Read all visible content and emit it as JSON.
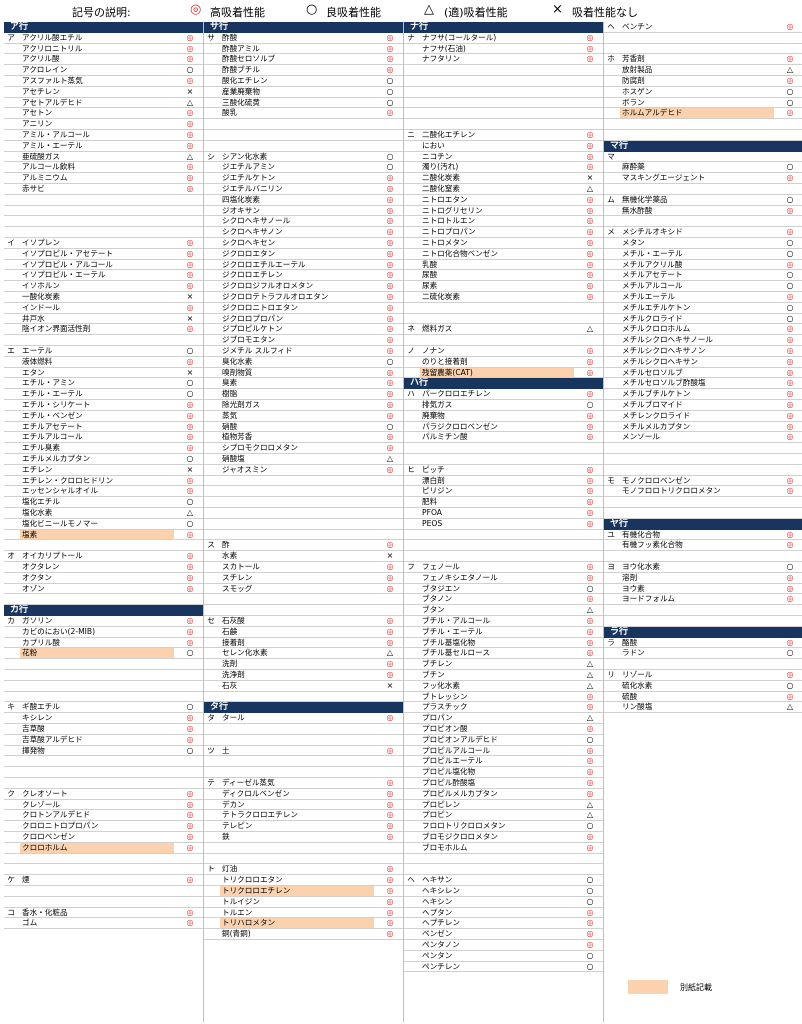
{
  "legend": {
    "title": "記号の説明:",
    "items": [
      {
        "sym": "◎",
        "label": "高吸着性能",
        "color": "#e03030"
      },
      {
        "sym": "○",
        "label": "良吸着性能",
        "color": "#000000"
      },
      {
        "sym": "△",
        "label": "(適)吸着性能",
        "color": "#000000"
      },
      {
        "sym": "×",
        "label": "吸着性能なし",
        "color": "#000000"
      }
    ]
  },
  "note": {
    "label": "別紙記載",
    "color": "#fbd2ad"
  },
  "colors": {
    "header": "#17355e",
    "highlight": "#fbd2ad",
    "double_circle": "#e03030"
  },
  "columns": [
    [
      [
        "H",
        "ア行"
      ],
      [
        "ア",
        "アクリル酸エチル",
        "◎"
      ],
      [
        "",
        "アクリロニトリル",
        "◎"
      ],
      [
        "",
        "アクリル酸",
        "◎"
      ],
      [
        "",
        "アクロレイン",
        "○"
      ],
      [
        "",
        "アスファルト蒸気",
        "◎"
      ],
      [
        "",
        "アセチレン",
        "×"
      ],
      [
        "",
        "アセトアルデヒド",
        "△"
      ],
      [
        "",
        "アセトン",
        "◎"
      ],
      [
        "",
        "アニリン",
        "◎"
      ],
      [
        "",
        "アミル・アルコール",
        "◎"
      ],
      [
        "",
        "アミル・エーテル",
        "◎"
      ],
      [
        "",
        "亜硫酸ガス",
        "△"
      ],
      [
        "",
        "アルコール飲料",
        "◎"
      ],
      [
        "",
        "アルミニウム",
        "◎"
      ],
      [
        "",
        "赤サビ",
        "◎"
      ],
      [
        "",
        "",
        ""
      ],
      [
        "",
        "",
        ""
      ],
      [
        "",
        "",
        ""
      ],
      [
        "",
        "",
        ""
      ],
      [
        "イ",
        "イソプレン",
        "◎"
      ],
      [
        "",
        "イソプロピル・アセテート",
        "◎"
      ],
      [
        "",
        "イソプロピル・アルコール",
        "◎"
      ],
      [
        "",
        "イソプロピル・エーテル",
        "◎"
      ],
      [
        "",
        "イソホルン",
        "◎"
      ],
      [
        "",
        "一酸化炭素",
        "×"
      ],
      [
        "",
        "インドール",
        "◎"
      ],
      [
        "",
        "井戸水",
        "×"
      ],
      [
        "",
        "陰イオン界面活性剤",
        "◎"
      ],
      [
        "",
        "",
        ""
      ],
      [
        "エ",
        "エーテル",
        "○"
      ],
      [
        "",
        "液体燃料",
        "◎"
      ],
      [
        "",
        "エタン",
        "×"
      ],
      [
        "",
        "エチル・アミン",
        "○"
      ],
      [
        "",
        "エチル・エーテル",
        "○"
      ],
      [
        "",
        "エチル・シリケート",
        "◎"
      ],
      [
        "",
        "エチル・ベンゼン",
        "◎"
      ],
      [
        "",
        "エチルアセテート",
        "◎"
      ],
      [
        "",
        "エチルアルコール",
        "◎"
      ],
      [
        "",
        "エチル臭素",
        "◎"
      ],
      [
        "",
        "エチルメルカプタン",
        "○"
      ],
      [
        "",
        "エチレン",
        "×"
      ],
      [
        "",
        "エチレン・クロロヒドリン",
        "◎"
      ],
      [
        "",
        "エッセンシャルオイル",
        "◎"
      ],
      [
        "",
        "塩化エチル",
        "○"
      ],
      [
        "",
        "塩化水素",
        "△"
      ],
      [
        "",
        "塩化ビニールモノマー",
        "○"
      ],
      [
        "",
        "塩素",
        "◎",
        "hl"
      ],
      [
        "",
        "",
        ""
      ],
      [
        "オ",
        "オイカリプトール",
        "◎"
      ],
      [
        "",
        "オクタレン",
        "◎"
      ],
      [
        "",
        "オクタン",
        "◎"
      ],
      [
        "",
        "オゾン",
        "◎"
      ],
      [
        "",
        "",
        ""
      ],
      [
        "H",
        "カ行"
      ],
      [
        "カ",
        "ガソリン",
        "◎"
      ],
      [
        "",
        "カビのにおい(2-MIB)",
        "◎"
      ],
      [
        "",
        "カプリル酸",
        "◎"
      ],
      [
        "",
        "花粉",
        "○",
        "hl"
      ],
      [
        "",
        "",
        ""
      ],
      [
        "",
        "",
        ""
      ],
      [
        "",
        "",
        ""
      ],
      [
        "",
        "",
        ""
      ],
      [
        "キ",
        "ギ酸エチル",
        "○"
      ],
      [
        "",
        "キシレン",
        "◎"
      ],
      [
        "",
        "吉草酸",
        "◎"
      ],
      [
        "",
        "吉草酸アルデヒド",
        "◎"
      ],
      [
        "",
        "揮発物",
        "○"
      ],
      [
        "",
        "",
        ""
      ],
      [
        "",
        "",
        ""
      ],
      [
        "",
        "",
        ""
      ],
      [
        "ク",
        "クレオソート",
        "◎"
      ],
      [
        "",
        "クレゾール",
        "◎"
      ],
      [
        "",
        "クロトンアルデヒド",
        "◎"
      ],
      [
        "",
        "クロロニトロプロパン",
        "◎"
      ],
      [
        "",
        "クロロベンゼン",
        "◎"
      ],
      [
        "",
        "クロロホルム",
        "◎",
        "hl"
      ],
      [
        "",
        "",
        ""
      ],
      [
        "",
        "",
        ""
      ],
      [
        "ケ",
        "煙",
        "◎"
      ],
      [
        "",
        "",
        ""
      ],
      [
        "",
        "",
        ""
      ],
      [
        "コ",
        "香水・化粧品",
        "◎"
      ],
      [
        "",
        "ゴム",
        "◎"
      ]
    ],
    [
      [
        "H",
        "サ行"
      ],
      [
        "サ",
        "酢酸",
        "◎"
      ],
      [
        "",
        "酢酸アミル",
        "◎"
      ],
      [
        "",
        "酢酸セロソルブ",
        "◎"
      ],
      [
        "",
        "酢酸ブチル",
        "◎"
      ],
      [
        "",
        "酸化エチレン",
        "○"
      ],
      [
        "",
        "産業廃棄物",
        "○"
      ],
      [
        "",
        "三酸化硫黄",
        "○"
      ],
      [
        "",
        "酸乳",
        "◎"
      ],
      [
        "",
        "",
        ""
      ],
      [
        "",
        "",
        ""
      ],
      [
        "",
        "",
        ""
      ],
      [
        "シ",
        "シアン化水素",
        "○"
      ],
      [
        "",
        "ジエチルアミン",
        "○"
      ],
      [
        "",
        "ジエチルケトン",
        "◎"
      ],
      [
        "",
        "ジエチルバニリン",
        "◎"
      ],
      [
        "",
        "四塩化炭素",
        "◎"
      ],
      [
        "",
        "ジオキサン",
        "◎"
      ],
      [
        "",
        "シクロヘキサノール",
        "◎"
      ],
      [
        "",
        "シクロヘキサノン",
        "◎"
      ],
      [
        "",
        "シクロヘキセン",
        "◎"
      ],
      [
        "",
        "ジクロロエタン",
        "◎"
      ],
      [
        "",
        "ジクロロエチルエーテル",
        "◎"
      ],
      [
        "",
        "ジクロロエチレン",
        "◎"
      ],
      [
        "",
        "ジクロロジフルオロメタン",
        "◎"
      ],
      [
        "",
        "ジクロロテトラフルオロエタン",
        "◎"
      ],
      [
        "",
        "ジクロロニトロエタン",
        "◎"
      ],
      [
        "",
        "ジクロロプロパン",
        "◎"
      ],
      [
        "",
        "ジプロピルケトン",
        "◎"
      ],
      [
        "",
        "ジブロモエタン",
        "◎"
      ],
      [
        "",
        "ジメチル スルフィド",
        "◎"
      ],
      [
        "",
        "臭化水素",
        "○"
      ],
      [
        "",
        "嗅剤物質",
        "◎"
      ],
      [
        "",
        "臭素",
        "◎"
      ],
      [
        "",
        "樹脂",
        "◎"
      ],
      [
        "",
        "除光剤ガス",
        "◎"
      ],
      [
        "",
        "蒸気",
        "◎"
      ],
      [
        "",
        "硝酸",
        "○"
      ],
      [
        "",
        "植物芳香",
        "◎"
      ],
      [
        "",
        "シプロモクロロメタン",
        "◎"
      ],
      [
        "",
        "硝酸塩",
        "△"
      ],
      [
        "",
        "ジャオスミン",
        "◎"
      ],
      [
        "",
        "",
        ""
      ],
      [
        "",
        "",
        ""
      ],
      [
        "",
        "",
        ""
      ],
      [
        "",
        "",
        ""
      ],
      [
        "",
        "",
        ""
      ],
      [
        "",
        "",
        ""
      ],
      [
        "ス",
        "酢",
        "◎"
      ],
      [
        "",
        "水素",
        "×"
      ],
      [
        "",
        "スカトール",
        "◎"
      ],
      [
        "",
        "スチレン",
        "◎"
      ],
      [
        "",
        "スモッグ",
        "◎"
      ],
      [
        "",
        "",
        ""
      ],
      [
        "",
        "",
        ""
      ],
      [
        "セ",
        "石灰酸",
        "◎"
      ],
      [
        "",
        "石鹸",
        "◎"
      ],
      [
        "",
        "接着剤",
        "◎"
      ],
      [
        "",
        "セレン化水素",
        "△"
      ],
      [
        "",
        "洗剤",
        "◎"
      ],
      [
        "",
        "洗浄剤",
        "◎"
      ],
      [
        "",
        "石灰",
        "×"
      ],
      [
        "",
        "",
        ""
      ],
      [
        "H",
        "タ行"
      ],
      [
        "タ",
        "タール",
        "◎"
      ],
      [
        "",
        "",
        ""
      ],
      [
        "",
        "",
        ""
      ],
      [
        "ツ",
        "土",
        "◎"
      ],
      [
        "",
        "",
        ""
      ],
      [
        "",
        "",
        ""
      ],
      [
        "テ",
        "ディーゼル蒸気",
        "◎"
      ],
      [
        "",
        "ディクロルベンゼン",
        "◎"
      ],
      [
        "",
        "デカン",
        "◎"
      ],
      [
        "",
        "テトラクロロエチレン",
        "◎"
      ],
      [
        "",
        "テレピン",
        "◎"
      ],
      [
        "",
        "鉄",
        "◎"
      ],
      [
        "",
        "",
        ""
      ],
      [
        "",
        "",
        ""
      ],
      [
        "ト",
        "灯油",
        "◎"
      ],
      [
        "",
        "トリクロロエタン",
        "◎"
      ],
      [
        "",
        "トリクロロエチレン",
        "◎",
        "hl"
      ],
      [
        "",
        "トルイジン",
        "◎"
      ],
      [
        "",
        "トルエン",
        "◎"
      ],
      [
        "",
        "トリハロメタン",
        "◎",
        "hl"
      ],
      [
        "",
        "銅(青銅)",
        "◎"
      ]
    ],
    [
      [
        "H",
        "ナ行"
      ],
      [
        "ナ",
        "ナフサ(コールタール)",
        "◎"
      ],
      [
        "",
        "ナフサ(石油)",
        "◎"
      ],
      [
        "",
        "ナフタリン",
        "◎"
      ],
      [
        "",
        "",
        ""
      ],
      [
        "",
        "",
        ""
      ],
      [
        "",
        "",
        ""
      ],
      [
        "",
        "",
        ""
      ],
      [
        "",
        "",
        ""
      ],
      [
        "",
        "",
        ""
      ],
      [
        "ニ",
        "二酸化エチレン",
        "◎"
      ],
      [
        "",
        "におい",
        "◎"
      ],
      [
        "",
        "ニコチン",
        "◎"
      ],
      [
        "",
        "濁り(汚れ)",
        "◎"
      ],
      [
        "",
        "二酸化炭素",
        "×"
      ],
      [
        "",
        "二酸化窒素",
        "△"
      ],
      [
        "",
        "ニトロエタン",
        "◎"
      ],
      [
        "",
        "ニトログリセリン",
        "◎"
      ],
      [
        "",
        "ニトロトルエン",
        "◎"
      ],
      [
        "",
        "ニトロプロパン",
        "◎"
      ],
      [
        "",
        "ニトロメタン",
        "◎"
      ],
      [
        "",
        "ニトロ化合物ベンゼン",
        "◎"
      ],
      [
        "",
        "乳酸",
        "◎"
      ],
      [
        "",
        "尿酸",
        "◎"
      ],
      [
        "",
        "尿素",
        "◎"
      ],
      [
        "",
        "二硫化炭素",
        "◎"
      ],
      [
        "",
        "",
        ""
      ],
      [
        "",
        "",
        ""
      ],
      [
        "ネ",
        "燃料ガス",
        "△"
      ],
      [
        "",
        "",
        ""
      ],
      [
        "ノ",
        "ノナン",
        "◎"
      ],
      [
        "",
        "のりと接着剤",
        "◎"
      ],
      [
        "",
        "残留農薬(CAT)",
        "◎",
        "hl"
      ],
      [
        "H",
        "ハ行"
      ],
      [
        "ハ",
        "パークロロエチレン",
        "◎"
      ],
      [
        "",
        "排気ガス",
        "○"
      ],
      [
        "",
        "廃棄物",
        "◎"
      ],
      [
        "",
        "パラジクロロベンゼン",
        "◎"
      ],
      [
        "",
        "パルミチン酸",
        "◎"
      ],
      [
        "",
        "",
        ""
      ],
      [
        "",
        "",
        ""
      ],
      [
        "ヒ",
        "ピッチ",
        "◎"
      ],
      [
        "",
        "漂白剤",
        "◎"
      ],
      [
        "",
        "ピリジン",
        "◎"
      ],
      [
        "",
        "肥料",
        "◎"
      ],
      [
        "",
        "PFOA",
        "◎"
      ],
      [
        "",
        "PEOS",
        "◎"
      ],
      [
        "",
        "",
        ""
      ],
      [
        "",
        "",
        ""
      ],
      [
        "",
        "",
        ""
      ],
      [
        "フ",
        "フェノール",
        "◎"
      ],
      [
        "",
        "フェノキシエタノール",
        "◎"
      ],
      [
        "",
        "ブタジエン",
        "○"
      ],
      [
        "",
        "ブタノン",
        "◎"
      ],
      [
        "",
        "ブタン",
        "△"
      ],
      [
        "",
        "ブチル・アルコール",
        "◎"
      ],
      [
        "",
        "ブチル・エーテル",
        "◎"
      ],
      [
        "",
        "ブチル基塩化物",
        "◎"
      ],
      [
        "",
        "ブチル基セルロース",
        "◎"
      ],
      [
        "",
        "ブチレン",
        "△"
      ],
      [
        "",
        "ブチン",
        "△"
      ],
      [
        "",
        "フッ化水素",
        "△"
      ],
      [
        "",
        "ブトレッシン",
        "◎"
      ],
      [
        "",
        "プラスチック",
        "◎"
      ],
      [
        "",
        "プロパン",
        "△"
      ],
      [
        "",
        "プロピオン酸",
        "◎"
      ],
      [
        "",
        "プロピオンアルデヒド",
        "○"
      ],
      [
        "",
        "プロピルアルコール",
        "◎"
      ],
      [
        "",
        "プロピルエーテル",
        "◎"
      ],
      [
        "",
        "プロピル塩化物",
        "◎"
      ],
      [
        "",
        "プロピル酢酸塩",
        "◎"
      ],
      [
        "",
        "プロピルメルカプタン",
        "◎"
      ],
      [
        "",
        "プロピレン",
        "△"
      ],
      [
        "",
        "プロピン",
        "△"
      ],
      [
        "",
        "フロロトリクロロメタン",
        "○"
      ],
      [
        "",
        "ブロモジクロロメタン",
        "◎"
      ],
      [
        "",
        "ブロモホルム",
        "◎"
      ],
      [
        "",
        "",
        ""
      ],
      [
        "",
        "",
        ""
      ],
      [
        "ヘ",
        "ヘキサン",
        "○"
      ],
      [
        "",
        "ヘキシレン",
        "○"
      ],
      [
        "",
        "ヘキシン",
        "○"
      ],
      [
        "",
        "ヘプタン",
        "◎"
      ],
      [
        "",
        "ヘプチレン",
        "◎"
      ],
      [
        "",
        "ベンゼン",
        "◎"
      ],
      [
        "",
        "ペンタノン",
        "◎"
      ],
      [
        "",
        "ペンタン",
        "○"
      ],
      [
        "",
        "ペンチレン",
        "○"
      ]
    ],
    [
      [
        "ヘ",
        "ベンチン",
        "◎"
      ],
      [
        "",
        "",
        ""
      ],
      [
        "",
        "",
        ""
      ],
      [
        "ホ",
        "芳香剤",
        "◎"
      ],
      [
        "",
        "放射製品",
        "△"
      ],
      [
        "",
        "防腐剤",
        "◎"
      ],
      [
        "",
        "ホスゲン",
        "○"
      ],
      [
        "",
        "ボラン",
        "○"
      ],
      [
        "",
        "ホルムアルデヒド",
        "◎",
        "hl"
      ],
      [
        "",
        "",
        ""
      ],
      [
        "",
        "",
        ""
      ],
      [
        "H",
        "マ行"
      ],
      [
        "マ",
        "",
        ""
      ],
      [
        "",
        "麻酔薬",
        "○"
      ],
      [
        "",
        "マスキングエージェント",
        "◎"
      ],
      [
        "",
        "",
        ""
      ],
      [
        "ム",
        "無機化学薬品",
        "○"
      ],
      [
        "",
        "無水酢酸",
        "◎"
      ],
      [
        "",
        "",
        ""
      ],
      [
        "メ",
        "メシチルオキシド",
        "◎"
      ],
      [
        "",
        "メタン",
        "○"
      ],
      [
        "",
        "メチル・エーテル",
        "○"
      ],
      [
        "",
        "メチルアクリル酸",
        "◎"
      ],
      [
        "",
        "メチルアセテート",
        "○"
      ],
      [
        "",
        "メチルアルコール",
        "○"
      ],
      [
        "",
        "メチルエーテル",
        "◎"
      ],
      [
        "",
        "メチルエチルケトン",
        "○"
      ],
      [
        "",
        "メチルクロライド",
        "○"
      ],
      [
        "",
        "メチルクロロホルム",
        "◎"
      ],
      [
        "",
        "メチルシクロヘキサノール",
        "◎"
      ],
      [
        "",
        "メチルシクロヘキサノン",
        "◎"
      ],
      [
        "",
        "メチルシクロヘキサン",
        "◎"
      ],
      [
        "",
        "メチルセロソルブ",
        "◎"
      ],
      [
        "",
        "メチルセロソルブ酢酸塩",
        "◎"
      ],
      [
        "",
        "メチルブチルケトン",
        "◎"
      ],
      [
        "",
        "メチルブロマイド",
        "◎"
      ],
      [
        "",
        "メチレンクロライド",
        "◎"
      ],
      [
        "",
        "メチルメルカプタン",
        "◎"
      ],
      [
        "",
        "メンソール",
        "◎"
      ],
      [
        "",
        "",
        ""
      ],
      [
        "",
        "",
        ""
      ],
      [
        "",
        "",
        ""
      ],
      [
        "モ",
        "モノクロロベンゼン",
        "◎"
      ],
      [
        "",
        "モノフロロトリクロロメタン",
        "◎"
      ],
      [
        "",
        "",
        ""
      ],
      [
        "",
        "",
        ""
      ],
      [
        "H",
        "ヤ行"
      ],
      [
        "ユ",
        "有機化合物",
        "◎"
      ],
      [
        "",
        "有機フッ素化合物",
        "◎"
      ],
      [
        "",
        "",
        ""
      ],
      [
        "ヨ",
        "ヨウ化水素",
        "○"
      ],
      [
        "",
        "溶剤",
        "◎"
      ],
      [
        "",
        "ヨウ素",
        "◎"
      ],
      [
        "",
        "ヨードフォルム",
        "◎"
      ],
      [
        "",
        "",
        ""
      ],
      [
        "",
        "",
        ""
      ],
      [
        "H",
        "ラ行"
      ],
      [
        "ラ",
        "酪酸",
        "◎"
      ],
      [
        "",
        "ラドン",
        "○"
      ],
      [
        "",
        "",
        ""
      ],
      [
        "リ",
        "リゾール",
        "◎"
      ],
      [
        "",
        "硫化水素",
        "○"
      ],
      [
        "",
        "硫酸",
        "◎"
      ],
      [
        "",
        "リン酸塩",
        "△"
      ]
    ]
  ]
}
